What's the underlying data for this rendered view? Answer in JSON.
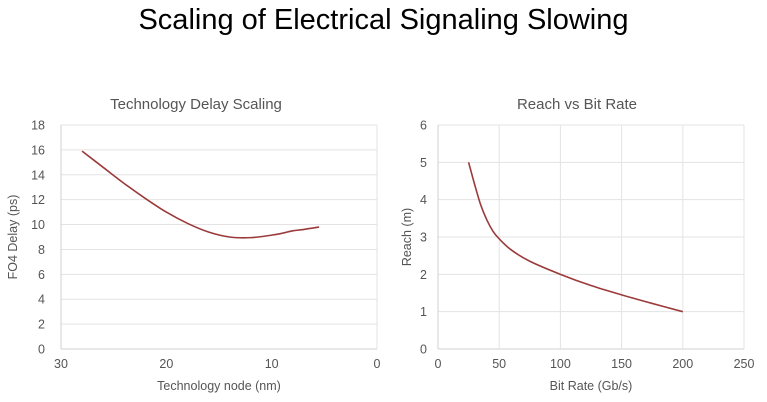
{
  "page": {
    "title": "Scaling of Electrical Signaling Slowing"
  },
  "colors": {
    "line": "#9b3a3a",
    "grid": "#e3e3e3",
    "axis": "#d0d0d0",
    "text": "#555555"
  },
  "chart_data": [
    {
      "type": "line",
      "title": "Technology Delay Scaling",
      "xlabel": "Technology node (nm)",
      "ylabel": "FO4 Delay (ps)",
      "xlim": [
        0,
        30
      ],
      "x_reversed": true,
      "ylim": [
        0,
        18
      ],
      "xticks": [
        30,
        20,
        10,
        0
      ],
      "yticks": [
        0,
        2,
        4,
        6,
        8,
        10,
        12,
        14,
        16,
        18
      ],
      "grid": "horizontal",
      "legend": "none",
      "series": [
        {
          "x": [
            28,
            26,
            24,
            22,
            20,
            18,
            16,
            14,
            12,
            10,
            9,
            8,
            7,
            5.5
          ],
          "y": [
            15.9,
            14.6,
            13.3,
            12.1,
            11.0,
            10.1,
            9.4,
            9.0,
            8.95,
            9.15,
            9.3,
            9.5,
            9.6,
            9.8
          ]
        }
      ]
    },
    {
      "type": "line",
      "title": "Reach vs Bit Rate",
      "xlabel": "Bit Rate (Gb/s)",
      "ylabel": "Reach (m)",
      "xlim": [
        0,
        250
      ],
      "x_reversed": false,
      "ylim": [
        0,
        6
      ],
      "xticks": [
        0,
        50,
        100,
        150,
        200,
        250
      ],
      "yticks": [
        0,
        1,
        2,
        3,
        4,
        5,
        6
      ],
      "grid": "both",
      "legend": "none",
      "series": [
        {
          "x": [
            25,
            30,
            35,
            40,
            45,
            50,
            60,
            75,
            100,
            125,
            150,
            175,
            200
          ],
          "y": [
            5.0,
            4.4,
            3.85,
            3.45,
            3.15,
            2.95,
            2.65,
            2.35,
            2.0,
            1.7,
            1.45,
            1.22,
            1.0
          ]
        }
      ]
    }
  ]
}
